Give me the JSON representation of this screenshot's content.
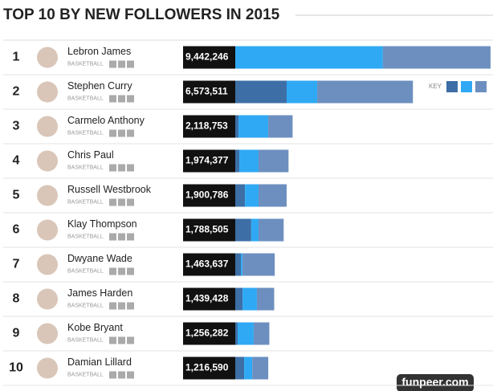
{
  "title": "TOP 10 BY NEW FOLLOWERS IN 2015",
  "key_label": "KEY",
  "watermark": "funpeer.com",
  "chart_data": {
    "type": "bar",
    "orientation": "horizontal",
    "stacked": true,
    "ranks": [
      1,
      2,
      3,
      4,
      5,
      6,
      7,
      8,
      9,
      10
    ],
    "categories": [
      "Lebron James",
      "Stephen Curry",
      "Carmelo Anthony",
      "Chris Paul",
      "Russell Westbrook",
      "Klay Thompson",
      "Dwyane Wade",
      "James Harden",
      "Kobe Bryant",
      "Damian Lillard"
    ],
    "sports": [
      "BASKETBALL",
      "BASKETBALL",
      "BASKETBALL",
      "BASKETBALL",
      "BASKETBALL",
      "BASKETBALL",
      "BASKETBALL",
      "BASKETBALL",
      "BASKETBALL",
      "BASKETBALL"
    ],
    "values": [
      9442246,
      6573511,
      2118753,
      1974377,
      1900786,
      1788505,
      1463637,
      1439428,
      1256282,
      1216590
    ],
    "value_labels": [
      "9,442,246",
      "6,573,511",
      "2,118,753",
      "1,974,377",
      "1,900,786",
      "1,788,505",
      "1,463,637",
      "1,439,428",
      "1,256,282",
      "1,216,590"
    ],
    "series": [
      {
        "color": "#3d6fa6",
        "values": [
          0,
          1900000,
          120000,
          150000,
          360000,
          590000,
          210000,
          270000,
          90000,
          330000
        ]
      },
      {
        "color": "#2fa9f4",
        "values": [
          5460000,
          1130000,
          1100000,
          710000,
          500000,
          270000,
          60000,
          530000,
          590000,
          300000
        ]
      },
      {
        "color": "#6c8fbf",
        "values": [
          3980000,
          3540000,
          900000,
          1110000,
          1040000,
          930000,
          1190000,
          640000,
          580000,
          590000
        ]
      }
    ]
  }
}
